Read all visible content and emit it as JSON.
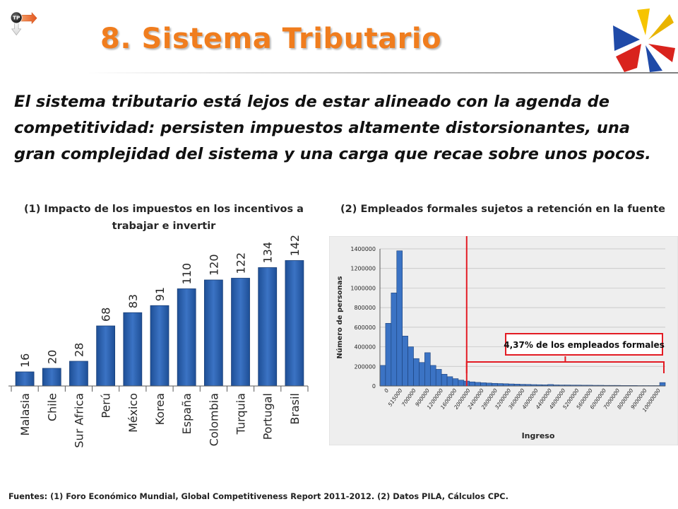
{
  "header": {
    "badge": "TP",
    "title": "8. Sistema Tributario"
  },
  "subtitle": "El sistema tributario está lejos de estar alineado con la agenda de competitividad: persisten impuestos altamente distorsionantes, una gran complejidad del sistema y una carga que recae sobre unos pocos.",
  "footnote": "Fuentes: (1) Foro Económico Mundial, Global Competitiveness Report 2011-2012. (2) Datos PILA, Cálculos CPC.",
  "colors": {
    "title": "#f07d1e",
    "bar": "#3b73c4",
    "bar_dark": "#1e4f96",
    "annotation": "#e31b23"
  },
  "chart_data": [
    {
      "type": "bar",
      "title": "(1) Impacto de los impuestos en los incentivos a trabajar e invertir",
      "categories": [
        "Malasia",
        "Chile",
        "Sur Africa",
        "Perú",
        "México",
        "Korea",
        "España",
        "Colombia",
        "Turquia",
        "Portugal",
        "Brasil"
      ],
      "values": [
        16,
        20,
        28,
        68,
        83,
        91,
        110,
        120,
        122,
        134,
        142
      ],
      "ylim": [
        0,
        160
      ],
      "data_labels": true,
      "grid": false,
      "xlabel": "",
      "ylabel": ""
    },
    {
      "type": "bar",
      "title": "(2) Empleados formales sujetos a retención en la fuente",
      "xlabel": "Ingreso",
      "ylabel": "Número de personas",
      "ylim": [
        0,
        1400000
      ],
      "y_ticks": [
        0,
        200000,
        400000,
        600000,
        800000,
        1000000,
        1200000,
        1400000
      ],
      "x_tick_labels": [
        "0",
        "515000",
        "700000",
        "900000",
        "1200000",
        "1600000",
        "2000000",
        "2400000",
        "2800000",
        "3200000",
        "3600000",
        "4000000",
        "4400000",
        "4800000",
        "5200000",
        "5600000",
        "6000000",
        "7000000",
        "8000000",
        "9000000",
        "10000000"
      ],
      "values": [
        210000,
        640000,
        950000,
        1380000,
        510000,
        400000,
        280000,
        240000,
        340000,
        210000,
        170000,
        120000,
        95000,
        75000,
        60000,
        50000,
        42000,
        37000,
        33000,
        30000,
        27000,
        25000,
        23000,
        21000,
        19000,
        17000,
        16000,
        14000,
        13000,
        12000,
        15000,
        11000,
        10000,
        10000,
        9000,
        9000,
        8000,
        8000,
        7000,
        7000,
        6000,
        6000,
        6000,
        5000,
        5000,
        5000,
        4000,
        4000,
        4000,
        4000,
        35000
      ],
      "threshold_index": 15,
      "annotation": "4,37% de los empleados formales",
      "grid": true
    }
  ]
}
